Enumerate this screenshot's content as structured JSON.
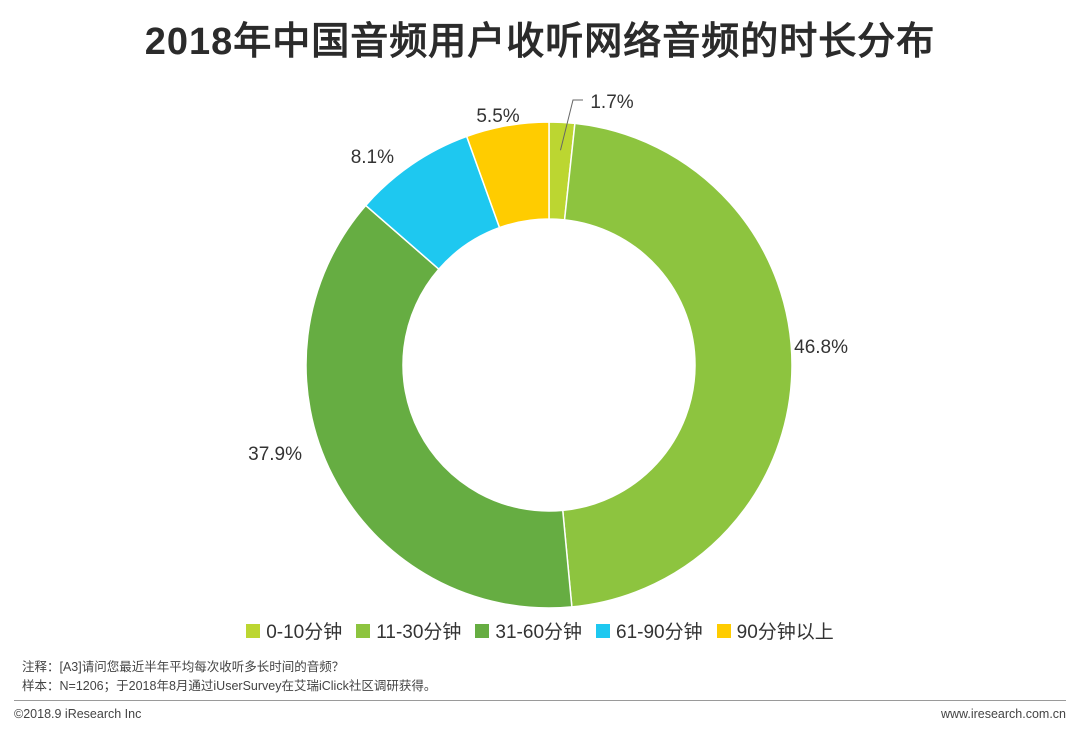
{
  "chart_data": {
    "type": "pie",
    "title": "2018年中国音频用户收听网络音频的时长分布",
    "categories": [
      "0-10分钟",
      "11-30分钟",
      "31-60分钟",
      "61-90分钟",
      "90分钟以上"
    ],
    "values": [
      1.7,
      46.8,
      37.9,
      8.1,
      5.5
    ],
    "labels": [
      "1.7%",
      "46.8%",
      "37.9%",
      "8.1%",
      "5.5%"
    ],
    "colors": [
      "#bcd631",
      "#8dc43f",
      "#66ad42",
      "#1ec8f0",
      "#ffcc00"
    ],
    "donut": true,
    "legend_position": "bottom"
  },
  "notes": {
    "note": "注释：[A3]请问您最近半年平均每次收听多长时间的音频？",
    "sample": "样本：N=1206；于2018年8月通过iUserSurvey在艾瑞iClick社区调研获得。"
  },
  "footer": {
    "copyright": "©2018.9 iResearch Inc",
    "url": "www.iresearch.com.cn"
  }
}
